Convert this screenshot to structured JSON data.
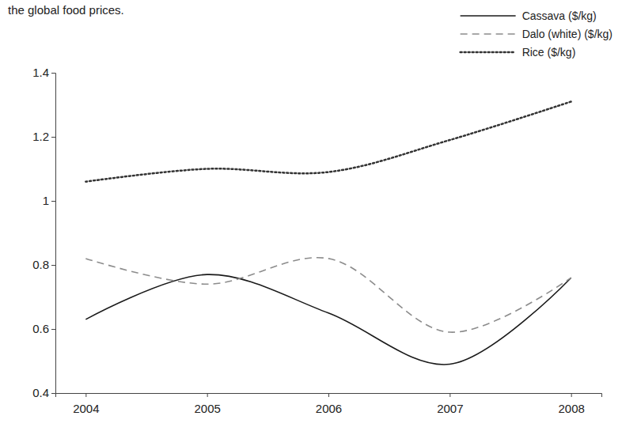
{
  "chart_data": {
    "type": "line",
    "title": "the global food prices.",
    "x": [
      2004,
      2005,
      2006,
      2007,
      2008
    ],
    "series": [
      {
        "name": "Cassava ($/kg)",
        "color": "#1a1a1a",
        "line_style": "solid",
        "values": [
          0.63,
          0.77,
          0.65,
          0.49,
          0.76
        ]
      },
      {
        "name": "Dalo (white) ($/kg)",
        "color": "#8c8c8c",
        "line_style": "dashed",
        "values": [
          0.82,
          0.74,
          0.82,
          0.59,
          0.76
        ]
      },
      {
        "name": "Rice ($/kg)",
        "color": "#333333",
        "line_style": "dotted",
        "values": [
          1.06,
          1.1,
          1.09,
          1.19,
          1.31
        ]
      }
    ],
    "xlim": [
      2003.75,
      2008.25
    ],
    "xticks": [
      2004,
      2005,
      2006,
      2007,
      2008
    ],
    "ylim": [
      0.4,
      1.4
    ],
    "yticks": [
      0.4,
      0.6,
      0.8,
      1,
      1.2,
      1.4
    ],
    "grid": false,
    "legend": "top-right"
  }
}
